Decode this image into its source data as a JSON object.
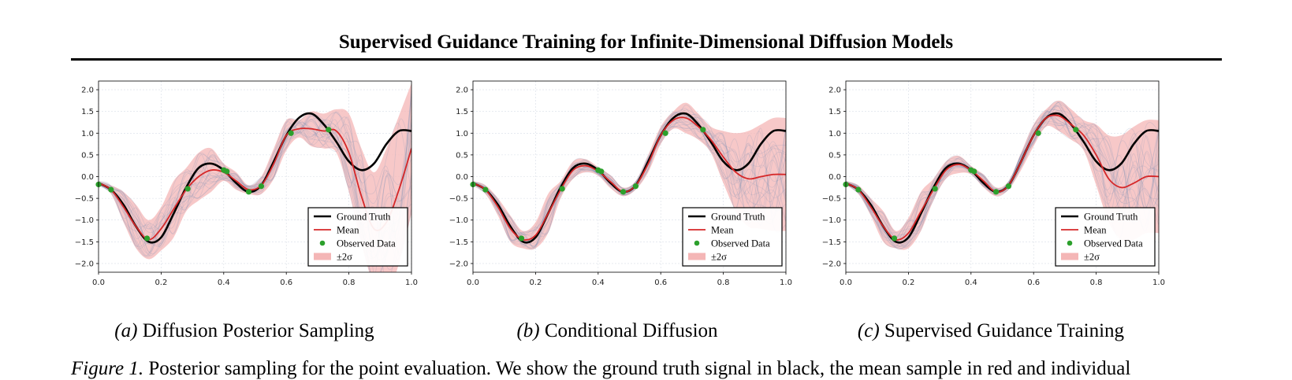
{
  "header": {
    "title": "Supervised Guidance Training for Infinite-Dimensional Diffusion Models"
  },
  "colors": {
    "ground_truth": "#000000",
    "mean": "#d62728",
    "observed": "#2ca02c",
    "band": "#f4b6b6",
    "samples": "#7b93b8"
  },
  "panels": [
    {
      "label": "(a)",
      "title": "Diffusion Posterior Sampling"
    },
    {
      "label": "(b)",
      "title": "Conditional Diffusion"
    },
    {
      "label": "(c)",
      "title": "Supervised Guidance Training"
    }
  ],
  "legend": {
    "ground_truth": "Ground Truth",
    "mean": "Mean",
    "observed": "Observed Data",
    "band": "±2σ"
  },
  "figure_caption": {
    "label": "Figure 1.",
    "text": "Posterior sampling for the point evaluation. We show the ground truth signal in black, the mean sample in red and individual"
  },
  "chart_data": [
    {
      "type": "line",
      "xlim": [
        0.0,
        1.0
      ],
      "ylim": [
        -2.2,
        2.2
      ],
      "xticks": [
        "0.0",
        "0.2",
        "0.4",
        "0.6",
        "0.8",
        "1.0"
      ],
      "yticks": [
        "−2.0",
        "−1.5",
        "−1.0",
        "−0.5",
        "0.0",
        "0.5",
        "1.0",
        "1.5",
        "2.0"
      ],
      "grid": true,
      "legend_position": "lower-right",
      "series": [
        {
          "name": "Ground Truth",
          "x": [
            0,
            0.04,
            0.08,
            0.12,
            0.16,
            0.2,
            0.24,
            0.28,
            0.32,
            0.36,
            0.4,
            0.44,
            0.48,
            0.52,
            0.56,
            0.6,
            0.64,
            0.68,
            0.72,
            0.76,
            0.8,
            0.84,
            0.88,
            0.92,
            0.96,
            1.0
          ],
          "y": [
            -0.15,
            -0.3,
            -0.65,
            -1.15,
            -1.5,
            -1.4,
            -0.85,
            -0.25,
            0.2,
            0.3,
            0.15,
            -0.15,
            -0.35,
            -0.2,
            0.35,
            0.95,
            1.35,
            1.45,
            1.2,
            0.8,
            0.35,
            0.15,
            0.3,
            0.75,
            1.05,
            1.05
          ]
        },
        {
          "name": "Mean",
          "x": [
            0,
            0.04,
            0.08,
            0.12,
            0.16,
            0.2,
            0.24,
            0.28,
            0.32,
            0.36,
            0.4,
            0.44,
            0.48,
            0.52,
            0.56,
            0.6,
            0.64,
            0.68,
            0.72,
            0.76,
            0.8,
            0.84,
            0.88,
            0.92,
            0.96,
            1.0
          ],
          "y": [
            -0.15,
            -0.3,
            -0.7,
            -1.15,
            -1.45,
            -1.2,
            -0.75,
            -0.3,
            0.0,
            0.15,
            0.1,
            -0.1,
            -0.3,
            -0.2,
            0.3,
            0.95,
            1.1,
            1.1,
            1.05,
            1.05,
            0.55,
            -0.45,
            -1.2,
            -1.05,
            -0.3,
            0.65
          ]
        },
        {
          "name": "Observed Data",
          "x": [
            0.0,
            0.04,
            0.155,
            0.285,
            0.4,
            0.41,
            0.48,
            0.52,
            0.615,
            0.735
          ],
          "y": [
            -0.18,
            -0.3,
            -1.42,
            -0.28,
            0.15,
            0.12,
            -0.35,
            -0.22,
            1.0,
            1.08
          ]
        }
      ],
      "band_halfwidth": [
        0.05,
        0.1,
        0.35,
        0.5,
        0.45,
        0.5,
        0.65,
        0.5,
        0.55,
        0.5,
        0.2,
        0.2,
        0.1,
        0.2,
        0.35,
        0.35,
        0.2,
        0.4,
        0.4,
        0.5,
        0.9,
        1.1,
        1.3,
        1.7,
        1.7,
        1.5
      ]
    },
    {
      "type": "line",
      "xlim": [
        0.0,
        1.0
      ],
      "ylim": [
        -2.2,
        2.2
      ],
      "xticks": [
        "0.0",
        "0.2",
        "0.4",
        "0.6",
        "0.8",
        "1.0"
      ],
      "yticks": [
        "−2.0",
        "−1.5",
        "−1.0",
        "−0.5",
        "0.0",
        "0.5",
        "1.0",
        "1.5",
        "2.0"
      ],
      "grid": true,
      "legend_position": "lower-right",
      "series": [
        {
          "name": "Ground Truth",
          "x": [
            0,
            0.04,
            0.08,
            0.12,
            0.16,
            0.2,
            0.24,
            0.28,
            0.32,
            0.36,
            0.4,
            0.44,
            0.48,
            0.52,
            0.56,
            0.6,
            0.64,
            0.68,
            0.72,
            0.76,
            0.8,
            0.84,
            0.88,
            0.92,
            0.96,
            1.0
          ],
          "y": [
            -0.15,
            -0.3,
            -0.65,
            -1.15,
            -1.5,
            -1.4,
            -0.85,
            -0.25,
            0.2,
            0.3,
            0.15,
            -0.15,
            -0.35,
            -0.2,
            0.35,
            0.95,
            1.35,
            1.45,
            1.2,
            0.8,
            0.35,
            0.15,
            0.3,
            0.75,
            1.05,
            1.05
          ]
        },
        {
          "name": "Mean",
          "x": [
            0,
            0.04,
            0.08,
            0.12,
            0.16,
            0.2,
            0.24,
            0.28,
            0.32,
            0.36,
            0.4,
            0.44,
            0.48,
            0.52,
            0.56,
            0.6,
            0.64,
            0.68,
            0.72,
            0.76,
            0.8,
            0.84,
            0.88,
            0.92,
            0.96,
            1.0
          ],
          "y": [
            -0.15,
            -0.3,
            -0.7,
            -1.2,
            -1.45,
            -1.35,
            -0.85,
            -0.3,
            0.15,
            0.25,
            0.12,
            -0.12,
            -0.35,
            -0.2,
            0.3,
            0.95,
            1.3,
            1.35,
            1.15,
            0.85,
            0.45,
            0.1,
            -0.05,
            0.0,
            0.05,
            0.05
          ]
        },
        {
          "name": "Observed Data",
          "x": [
            0.0,
            0.04,
            0.155,
            0.285,
            0.4,
            0.41,
            0.48,
            0.52,
            0.615,
            0.735
          ],
          "y": [
            -0.18,
            -0.3,
            -1.42,
            -0.28,
            0.15,
            0.12,
            -0.35,
            -0.22,
            1.0,
            1.08
          ]
        }
      ],
      "band_halfwidth": [
        0.05,
        0.1,
        0.2,
        0.3,
        0.2,
        0.3,
        0.45,
        0.2,
        0.2,
        0.15,
        0.1,
        0.15,
        0.1,
        0.1,
        0.2,
        0.2,
        0.2,
        0.35,
        0.3,
        0.3,
        0.6,
        0.9,
        1.1,
        1.2,
        1.3,
        1.3
      ]
    },
    {
      "type": "line",
      "xlim": [
        0.0,
        1.0
      ],
      "ylim": [
        -2.2,
        2.2
      ],
      "xticks": [
        "0.0",
        "0.2",
        "0.4",
        "0.6",
        "0.8",
        "1.0"
      ],
      "yticks": [
        "−2.0",
        "−1.5",
        "−1.0",
        "−0.5",
        "0.0",
        "0.5",
        "1.0",
        "1.5",
        "2.0"
      ],
      "grid": true,
      "legend_position": "lower-right",
      "series": [
        {
          "name": "Ground Truth",
          "x": [
            0,
            0.04,
            0.08,
            0.12,
            0.16,
            0.2,
            0.24,
            0.28,
            0.32,
            0.36,
            0.4,
            0.44,
            0.48,
            0.52,
            0.56,
            0.6,
            0.64,
            0.68,
            0.72,
            0.76,
            0.8,
            0.84,
            0.88,
            0.92,
            0.96,
            1.0
          ],
          "y": [
            -0.15,
            -0.3,
            -0.65,
            -1.15,
            -1.5,
            -1.4,
            -0.85,
            -0.25,
            0.2,
            0.3,
            0.15,
            -0.15,
            -0.35,
            -0.2,
            0.35,
            0.95,
            1.35,
            1.45,
            1.2,
            0.8,
            0.35,
            0.15,
            0.3,
            0.75,
            1.05,
            1.05
          ]
        },
        {
          "name": "Mean",
          "x": [
            0,
            0.04,
            0.08,
            0.12,
            0.16,
            0.2,
            0.24,
            0.28,
            0.32,
            0.36,
            0.4,
            0.44,
            0.48,
            0.52,
            0.56,
            0.6,
            0.64,
            0.68,
            0.72,
            0.76,
            0.8,
            0.84,
            0.88,
            0.92,
            0.96,
            1.0
          ],
          "y": [
            -0.15,
            -0.3,
            -0.7,
            -1.15,
            -1.45,
            -1.3,
            -0.8,
            -0.3,
            0.15,
            0.28,
            0.15,
            -0.1,
            -0.35,
            -0.2,
            0.35,
            0.95,
            1.35,
            1.4,
            1.2,
            0.95,
            0.5,
            -0.05,
            -0.25,
            -0.15,
            0.0,
            0.0
          ]
        },
        {
          "name": "Observed Data",
          "x": [
            0.0,
            0.04,
            0.155,
            0.285,
            0.4,
            0.41,
            0.48,
            0.52,
            0.615,
            0.735
          ],
          "y": [
            -0.18,
            -0.3,
            -1.42,
            -0.28,
            0.15,
            0.12,
            -0.35,
            -0.22,
            1.0,
            1.08
          ]
        }
      ],
      "band_halfwidth": [
        0.05,
        0.1,
        0.2,
        0.35,
        0.2,
        0.35,
        0.45,
        0.25,
        0.2,
        0.2,
        0.1,
        0.15,
        0.1,
        0.1,
        0.2,
        0.25,
        0.2,
        0.35,
        0.35,
        0.35,
        0.7,
        1.0,
        1.2,
        1.3,
        1.3,
        1.3
      ]
    }
  ]
}
